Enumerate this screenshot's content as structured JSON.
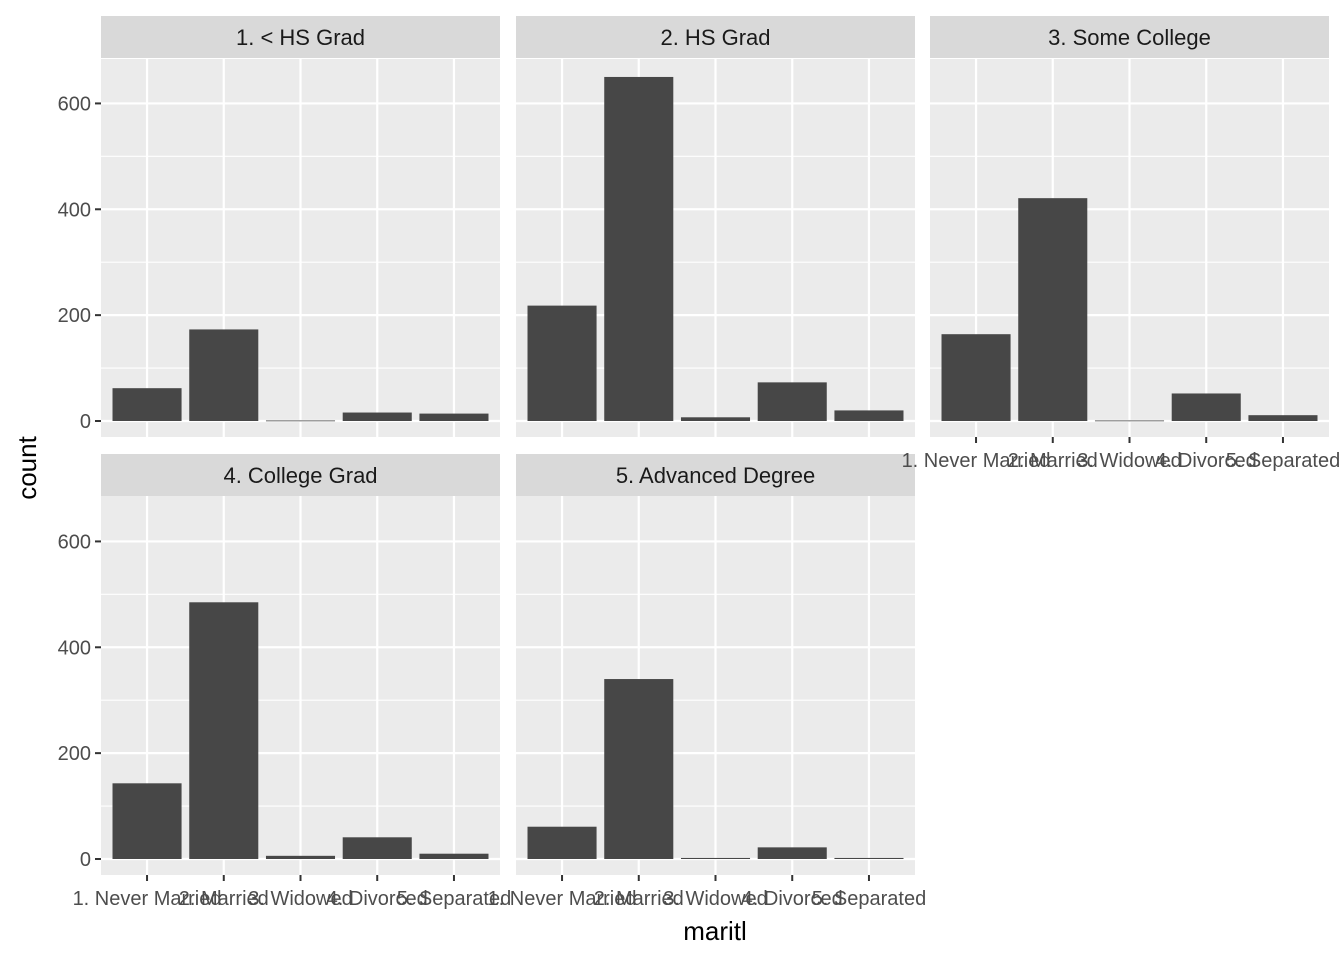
{
  "chart_data": {
    "type": "bar",
    "layout": "facet_wrap",
    "xlabel": "maritl",
    "ylabel": "count",
    "ylim": [
      0,
      680
    ],
    "y_ticks": [
      0,
      200,
      400,
      600
    ],
    "categories": [
      "1. Never Married",
      "2. Married",
      "3. Widowed",
      "4. Divorced",
      "5. Separated"
    ],
    "grid": true,
    "colors": {
      "bar": "#474747",
      "panel": "#ebebeb",
      "strip": "#d9d9d9",
      "grid": "#ffffff",
      "tick": "#333333"
    },
    "panels": [
      {
        "title": "1. < HS Grad",
        "values": [
          62,
          173,
          1,
          16,
          14
        ]
      },
      {
        "title": "2. HS Grad",
        "values": [
          218,
          650,
          7,
          73,
          20
        ]
      },
      {
        "title": "3. Some College",
        "values": [
          164,
          421,
          1,
          52,
          11
        ]
      },
      {
        "title": "4. College Grad",
        "values": [
          143,
          485,
          6,
          41,
          10
        ]
      },
      {
        "title": "5. Advanced Degree",
        "values": [
          61,
          340,
          2,
          22,
          2
        ]
      }
    ]
  }
}
